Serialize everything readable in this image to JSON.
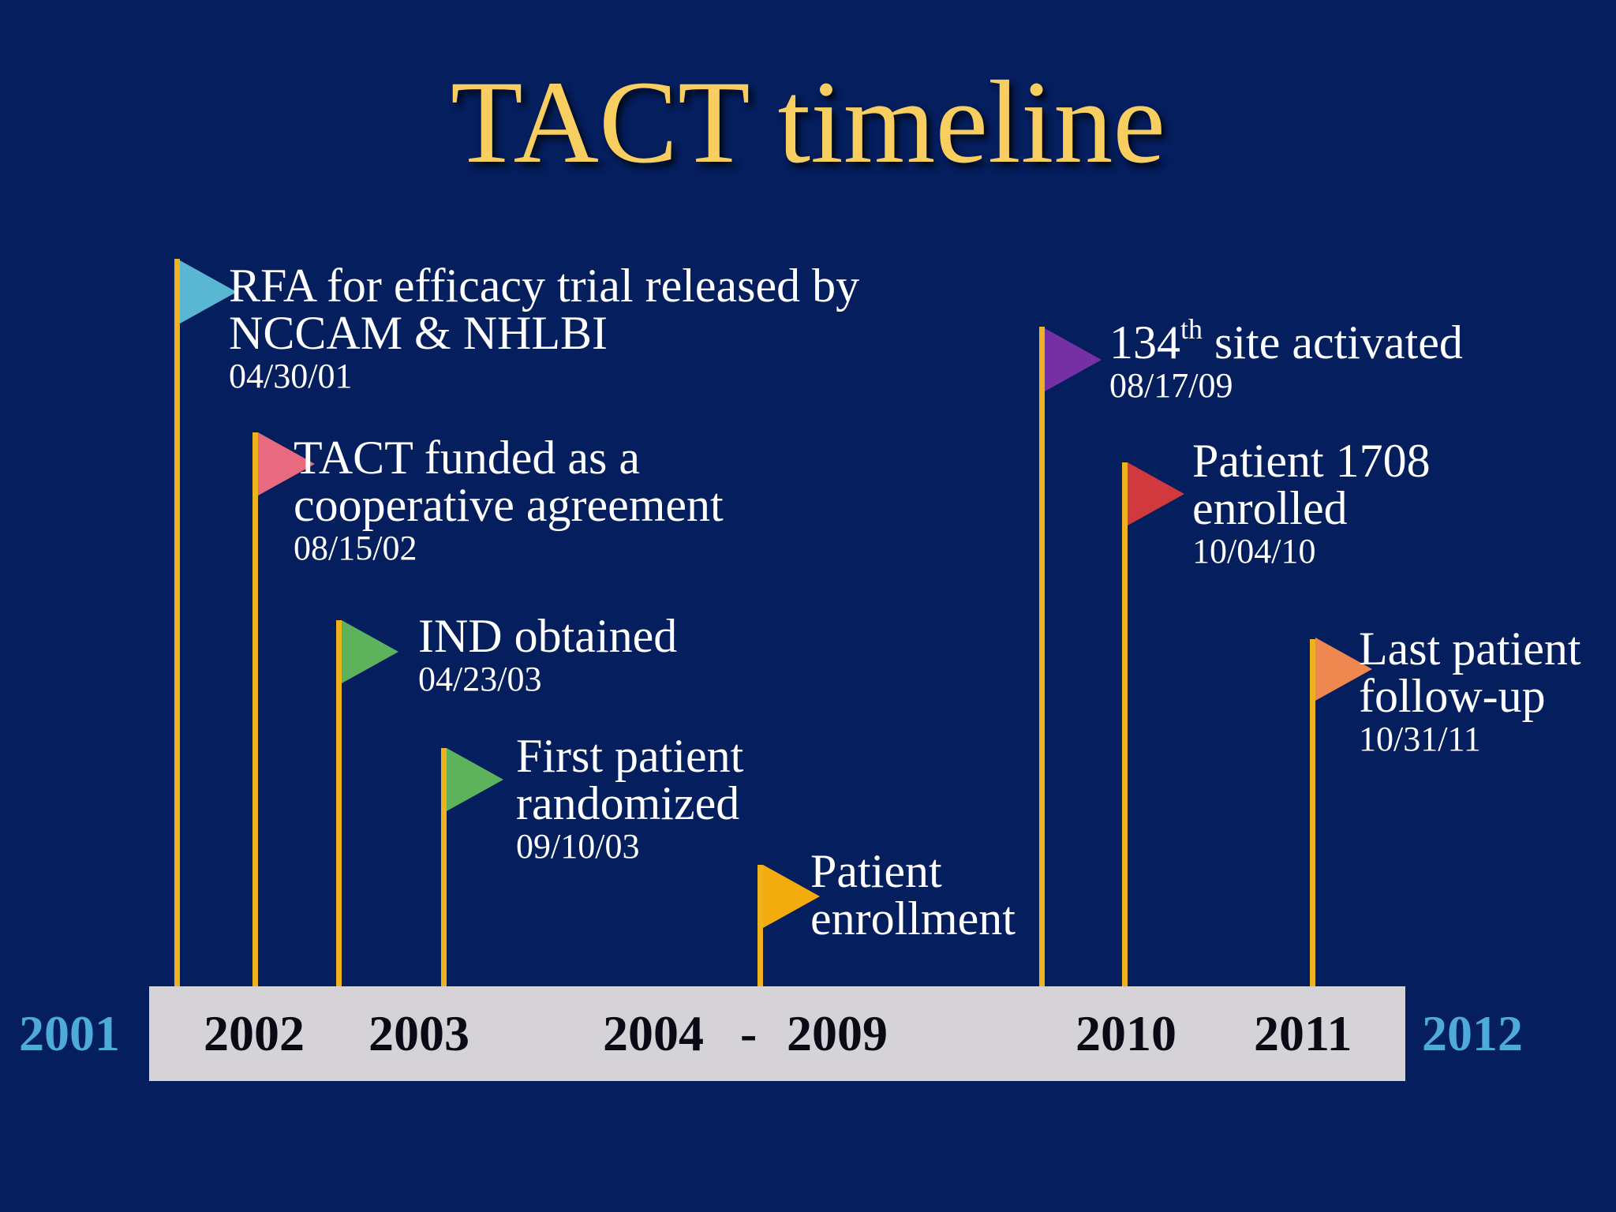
{
  "title": "TACT timeline",
  "colors": {
    "background": "#041e5e",
    "title": "#f9ce61",
    "pole": "#edb21e",
    "axis_bar": "#d5d3d8",
    "edge_year": "#4eaad8"
  },
  "events": [
    {
      "line1": "RFA for efficacy trial released by",
      "line2": "NCCAM & NHLBI",
      "date": "04/30/01",
      "flag_color": "#5ab7d4"
    },
    {
      "line1": "TACT funded as a",
      "line2": "cooperative agreement",
      "date": "08/15/02",
      "flag_color": "#e86a80"
    },
    {
      "line1": "IND obtained",
      "date": "04/23/03",
      "flag_color": "#5cb35c"
    },
    {
      "line1": "First patient",
      "line2": "randomized",
      "date": "09/10/03",
      "flag_color": "#5cb35c"
    },
    {
      "line1": "Patient",
      "line2": "enrollment",
      "flag_color": "#f2ac0e"
    },
    {
      "number": "134",
      "ordinal": "th",
      "rest": " site activated",
      "date": "08/17/09",
      "flag_color": "#7530a4"
    },
    {
      "line1": "Patient 1708",
      "line2": "enrolled",
      "date": "10/04/10",
      "flag_color": "#d0393e"
    },
    {
      "line1": "Last patient",
      "line2": "follow-up",
      "date": "10/31/11",
      "flag_color": "#ef8751"
    }
  ],
  "axis": {
    "start_year": "2001",
    "labels": [
      "2002",
      "2003",
      "2004",
      "-",
      "2009",
      "2010",
      "2011"
    ],
    "end_year": "2012"
  }
}
